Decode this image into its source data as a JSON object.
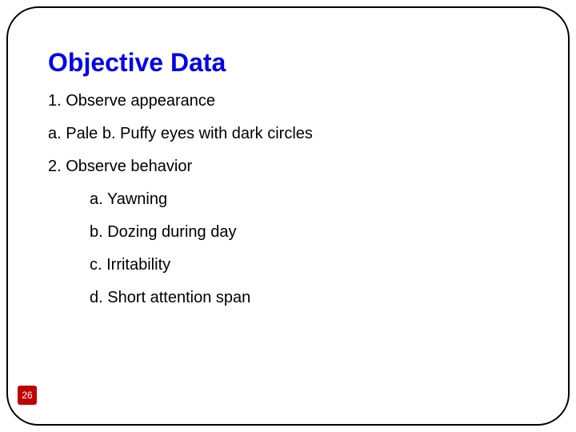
{
  "title": "Objective Data",
  "title_color": "#0000ee",
  "title_fontsize": 32,
  "body_fontsize": 20,
  "body_color": "#000000",
  "items": {
    "one": "1. Observe appearance",
    "one_a": "a. Pale b. Puffy eyes with dark circles",
    "two": "2. Observe behavior",
    "two_a": "a. Yawning",
    "two_b": "b. Dozing during day",
    "two_c": "c. Irritability",
    "two_d": "d. Short attention span"
  },
  "page_number": "26",
  "page_number_bg": "#c00000",
  "page_number_color": "#ffffff",
  "frame_border_color": "#000000",
  "frame_border_radius": 40,
  "background_color": "#ffffff"
}
